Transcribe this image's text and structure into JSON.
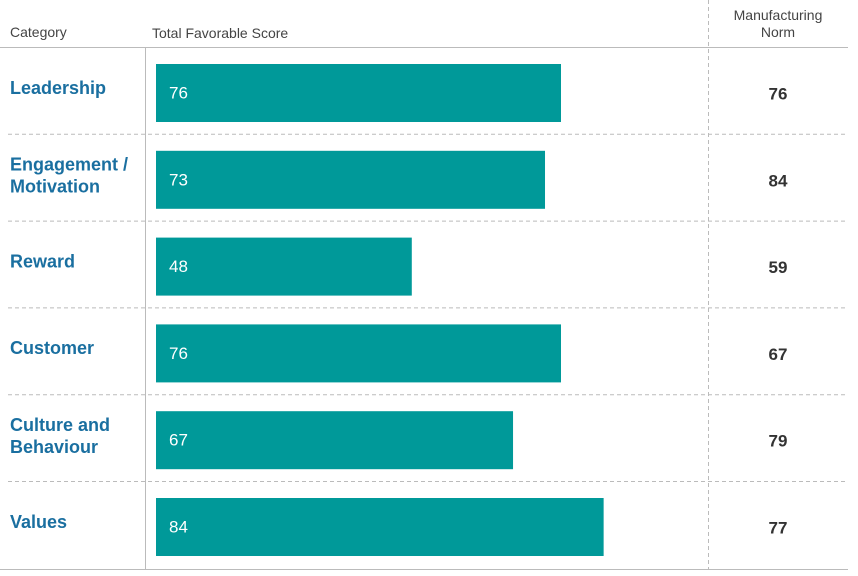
{
  "headers": {
    "category": "Category",
    "score": "Total Favorable Score",
    "norm_line1": "Manufacturing",
    "norm_line2": "Norm"
  },
  "colors": {
    "bar": "#009999",
    "category_text": "#1a6fa0",
    "norm_text": "#333333",
    "bar_label": "#ffffff",
    "grid": "#bbbbbb"
  },
  "chart_data": {
    "type": "bar",
    "orientation": "horizontal",
    "title": "",
    "xlabel": "Total Favorable Score",
    "ylabel": "Category",
    "xlim": [
      0,
      100
    ],
    "grid": false,
    "categories": [
      [
        "Leadership"
      ],
      [
        "Engagement /",
        "Motivation"
      ],
      [
        "Reward"
      ],
      [
        "Customer"
      ],
      [
        "Culture and",
        "Behaviour"
      ],
      [
        "Values"
      ]
    ],
    "values": [
      76,
      73,
      48,
      76,
      67,
      84
    ],
    "norm_label": "Manufacturing Norm",
    "norm_values": [
      76,
      84,
      59,
      67,
      79,
      77
    ]
  }
}
